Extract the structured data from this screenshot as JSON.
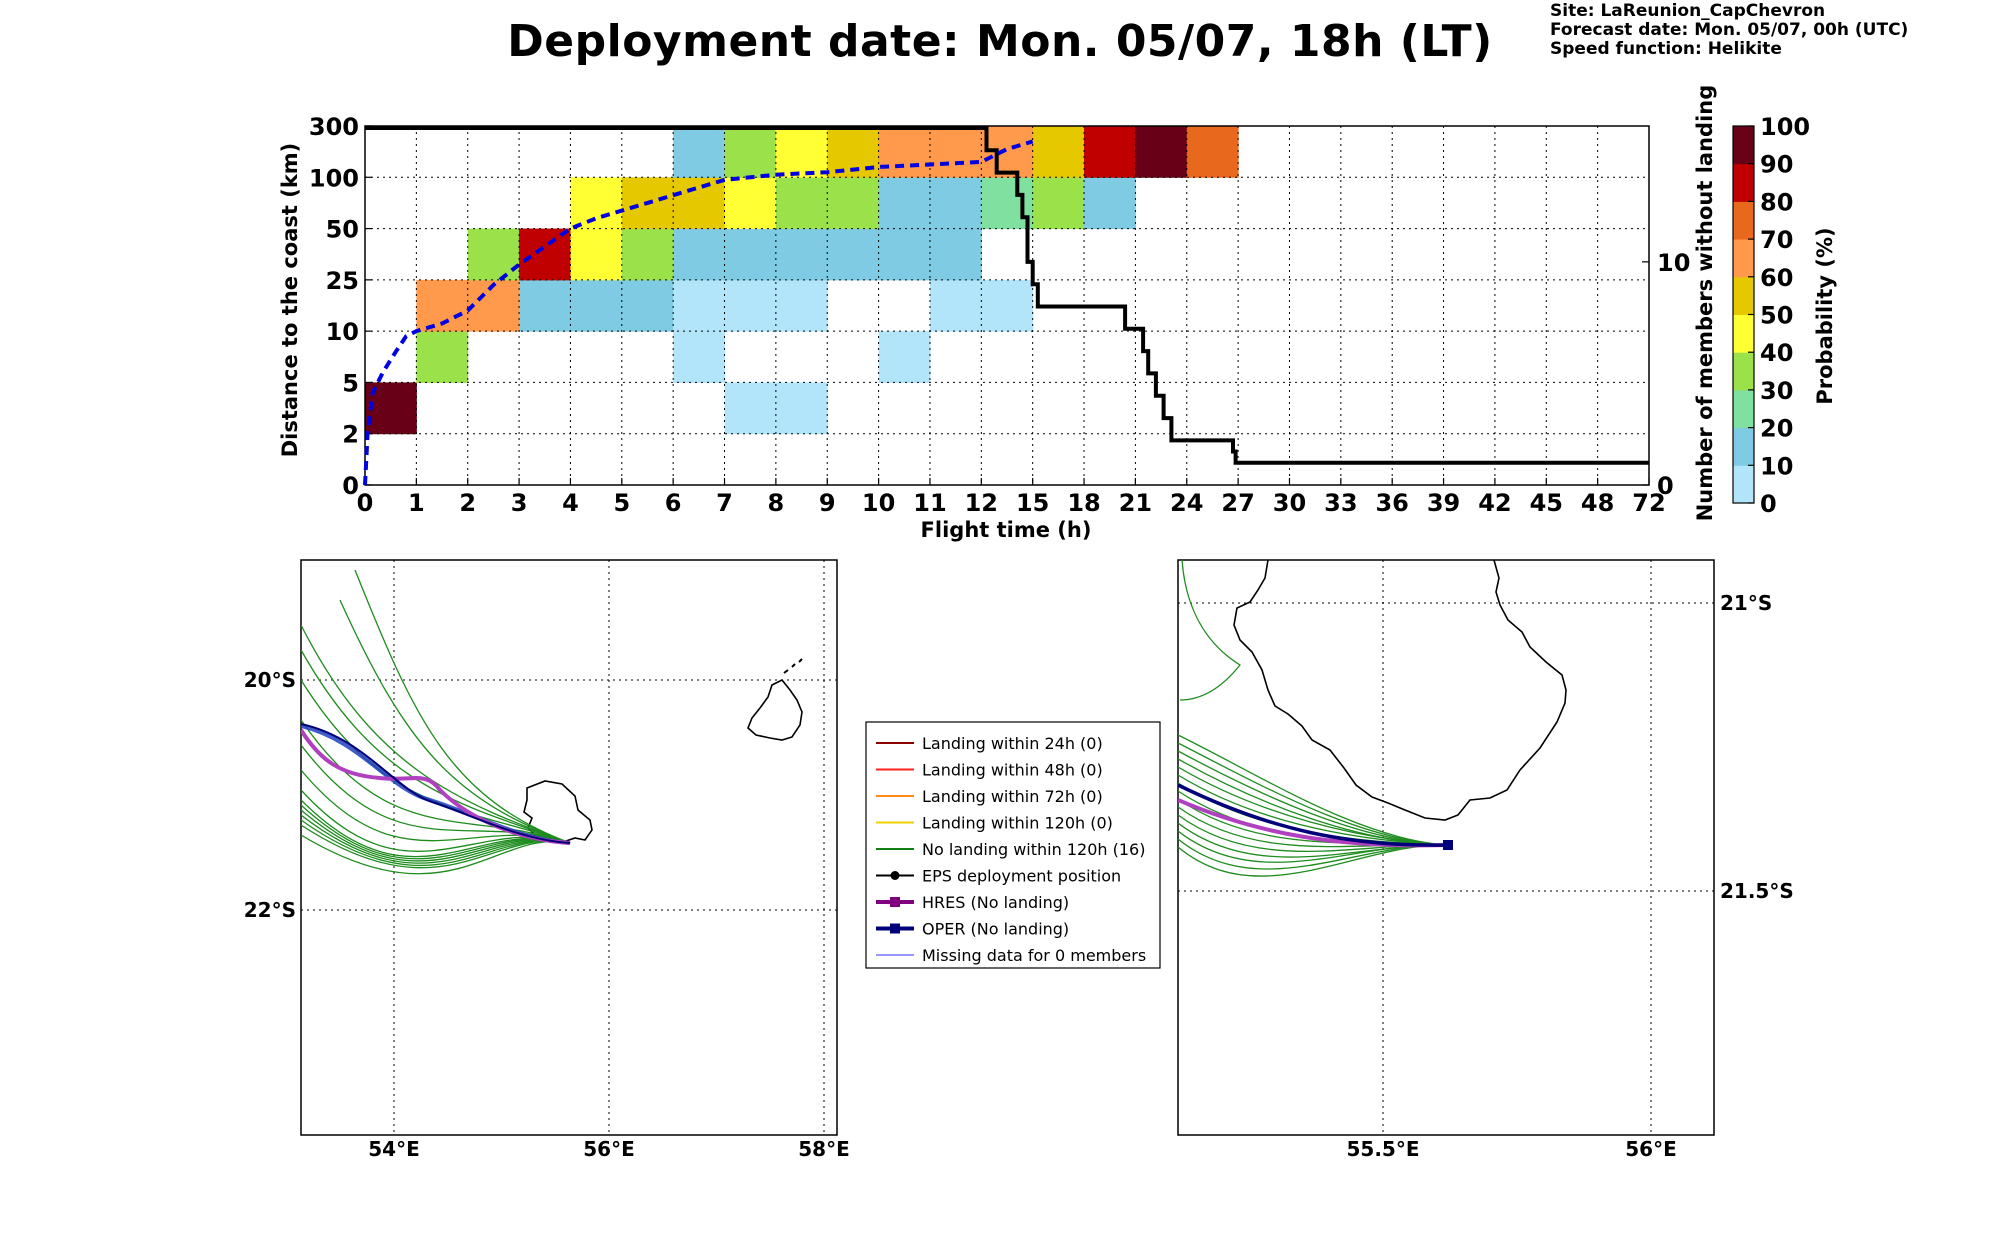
{
  "title": "Deployment date: Mon. 05/07, 18h (LT)",
  "meta": {
    "site": "Site: LaReunion_CapChevron",
    "forecast": "Forecast date: Mon. 05/07, 00h (UTC)",
    "speed": "Speed function: Helikite"
  },
  "chart_data": [
    {
      "type": "heatmap",
      "xlabel": "Flight time (h)",
      "ylabel": "Distance to the coast (km)",
      "y2label": "Number of members without landing",
      "colorbar_label": "Probability (%)",
      "x_ticks": [
        "0",
        "1",
        "2",
        "3",
        "4",
        "5",
        "6",
        "7",
        "8",
        "9",
        "10",
        "11",
        "12",
        "15",
        "18",
        "21",
        "24",
        "27",
        "30",
        "33",
        "36",
        "39",
        "42",
        "45",
        "48",
        "72"
      ],
      "y_ticks": [
        "0",
        "2",
        "5",
        "10",
        "25",
        "50",
        "100",
        "300"
      ],
      "y2_ticks": [
        "0",
        "10"
      ],
      "y2_range": [
        0,
        16
      ],
      "grid": true,
      "colorbar": {
        "ticks": [
          "0",
          "10",
          "20",
          "30",
          "40",
          "50",
          "60",
          "70",
          "80",
          "90",
          "100"
        ],
        "bins": [
          {
            "lo": 0,
            "hi": 10,
            "color": "#b3e5fa"
          },
          {
            "lo": 10,
            "hi": 20,
            "color": "#7ecbe3"
          },
          {
            "lo": 20,
            "hi": 30,
            "color": "#7fe0a0"
          },
          {
            "lo": 30,
            "hi": 40,
            "color": "#9be24a"
          },
          {
            "lo": 40,
            "hi": 50,
            "color": "#ffff33"
          },
          {
            "lo": 50,
            "hi": 60,
            "color": "#e6c800"
          },
          {
            "lo": 60,
            "hi": 70,
            "color": "#ff9a4d"
          },
          {
            "lo": 70,
            "hi": 80,
            "color": "#e8681e"
          },
          {
            "lo": 80,
            "hi": 90,
            "color": "#c00000"
          },
          {
            "lo": 90,
            "hi": 100,
            "color": "#680018"
          }
        ]
      },
      "cells": [
        {
          "x": 0,
          "y": 1,
          "p": 95
        },
        {
          "x": 1,
          "y": 2,
          "p": 35
        },
        {
          "x": 1,
          "y": 3,
          "p": 65
        },
        {
          "x": 2,
          "y": 3,
          "p": 65
        },
        {
          "x": 2,
          "y": 4,
          "p": 35
        },
        {
          "x": 3,
          "y": 3,
          "p": 15
        },
        {
          "x": 3,
          "y": 4,
          "p": 85
        },
        {
          "x": 4,
          "y": 3,
          "p": 15
        },
        {
          "x": 4,
          "y": 4,
          "p": 45
        },
        {
          "x": 4,
          "y": 5,
          "p": 45
        },
        {
          "x": 5,
          "y": 3,
          "p": 15
        },
        {
          "x": 5,
          "y": 4,
          "p": 35
        },
        {
          "x": 5,
          "y": 5,
          "p": 55
        },
        {
          "x": 6,
          "y": 2,
          "p": 5
        },
        {
          "x": 6,
          "y": 3,
          "p": 5
        },
        {
          "x": 6,
          "y": 4,
          "p": 15
        },
        {
          "x": 6,
          "y": 5,
          "p": 55
        },
        {
          "x": 6,
          "y": 6,
          "p": 15
        },
        {
          "x": 7,
          "y": 1,
          "p": 5
        },
        {
          "x": 7,
          "y": 3,
          "p": 5
        },
        {
          "x": 7,
          "y": 4,
          "p": 15
        },
        {
          "x": 7,
          "y": 5,
          "p": 45
        },
        {
          "x": 7,
          "y": 6,
          "p": 35
        },
        {
          "x": 8,
          "y": 1,
          "p": 5
        },
        {
          "x": 8,
          "y": 3,
          "p": 5
        },
        {
          "x": 8,
          "y": 4,
          "p": 15
        },
        {
          "x": 8,
          "y": 5,
          "p": 35
        },
        {
          "x": 8,
          "y": 6,
          "p": 45
        },
        {
          "x": 9,
          "y": 4,
          "p": 15
        },
        {
          "x": 9,
          "y": 5,
          "p": 35
        },
        {
          "x": 9,
          "y": 6,
          "p": 55
        },
        {
          "x": 10,
          "y": 2,
          "p": 5
        },
        {
          "x": 10,
          "y": 4,
          "p": 15
        },
        {
          "x": 10,
          "y": 5,
          "p": 15
        },
        {
          "x": 10,
          "y": 6,
          "p": 65
        },
        {
          "x": 11,
          "y": 3,
          "p": 5
        },
        {
          "x": 11,
          "y": 4,
          "p": 15
        },
        {
          "x": 11,
          "y": 5,
          "p": 15
        },
        {
          "x": 11,
          "y": 6,
          "p": 65
        },
        {
          "x": 12,
          "y": 3,
          "p": 5
        },
        {
          "x": 12,
          "y": 5,
          "p": 25
        },
        {
          "x": 12,
          "y": 6,
          "p": 65
        },
        {
          "x": 13,
          "y": 5,
          "p": 35
        },
        {
          "x": 13,
          "y": 6,
          "p": 55
        },
        {
          "x": 14,
          "y": 5,
          "p": 15
        },
        {
          "x": 14,
          "y": 6,
          "p": 85
        },
        {
          "x": 15,
          "y": 6,
          "p": 95
        },
        {
          "x": 16,
          "y": 6,
          "p": 75
        }
      ],
      "median_distance": {
        "x_index": [
          0,
          0.05,
          0.15,
          0.35,
          0.6,
          0.8,
          1,
          1.5,
          2,
          2.5,
          3,
          3.5,
          4,
          4.5,
          5,
          5.5,
          6,
          6.5,
          7,
          8,
          9,
          10,
          11,
          12,
          12.5,
          13
        ],
        "y_index": [
          0,
          1,
          1.8,
          2.2,
          2.6,
          2.9,
          3.0,
          3.15,
          3.4,
          3.9,
          4.3,
          4.65,
          5.0,
          5.2,
          5.35,
          5.5,
          5.65,
          5.8,
          5.95,
          6.05,
          6.1,
          6.2,
          6.25,
          6.3,
          6.55,
          6.7
        ]
      },
      "members_without_landing": {
        "x_index": [
          0,
          12.1,
          12.1,
          12.3,
          12.3,
          12.7,
          12.7,
          12.8,
          12.8,
          12.9,
          12.9,
          13.0,
          13.0,
          13.1,
          13.1,
          14.8,
          14.8,
          15.15,
          15.15,
          15.25,
          15.25,
          15.4,
          15.4,
          15.55,
          15.55,
          15.7,
          15.7,
          15.8,
          15.8,
          16.2,
          16.2,
          16.9,
          16.9,
          16.95,
          16.95,
          17,
          17,
          25
        ],
        "members": [
          16,
          16,
          15,
          15,
          14,
          14,
          13,
          13,
          12,
          12,
          10,
          10,
          9,
          9,
          8,
          8,
          7,
          7,
          6,
          6,
          5,
          5,
          4,
          4,
          3,
          3,
          2,
          2,
          2,
          2,
          2,
          2,
          1.5,
          1.5,
          1,
          1,
          1,
          1
        ]
      }
    }
  ],
  "left_map": {
    "lon_labels": [
      "54°E",
      "56°E",
      "58°E"
    ],
    "lat_labels": [
      "20°S",
      "22°S"
    ]
  },
  "right_map": {
    "lon_labels": [
      "55.5°E",
      "56°E"
    ],
    "lat_labels": [
      "21°S",
      "21.5°S"
    ]
  },
  "legend": {
    "items": [
      {
        "label": "Landing within 24h (0)",
        "color": "#8b0000",
        "marker": false,
        "width": 2
      },
      {
        "label": "Landing within 48h (0)",
        "color": "#ff2020",
        "marker": false,
        "width": 2
      },
      {
        "label": "Landing within 72h (0)",
        "color": "#ff8c1a",
        "marker": false,
        "width": 2
      },
      {
        "label": "Landing within 120h (0)",
        "color": "#f0d000",
        "marker": false,
        "width": 2
      },
      {
        "label": "No landing within 120h (16)",
        "color": "#108010",
        "marker": false,
        "width": 2
      },
      {
        "label": "EPS deployment position",
        "color": "#000000",
        "marker": "circle",
        "width": 2
      },
      {
        "label": "HRES (No landing)",
        "color": "#800080",
        "marker": "square",
        "width": 4
      },
      {
        "label": "OPER (No landing)",
        "color": "#00007a",
        "marker": "square",
        "width": 4
      },
      {
        "label": "Missing data for 0 members",
        "color": "#3030ff",
        "marker": false,
        "width": 1
      }
    ]
  }
}
